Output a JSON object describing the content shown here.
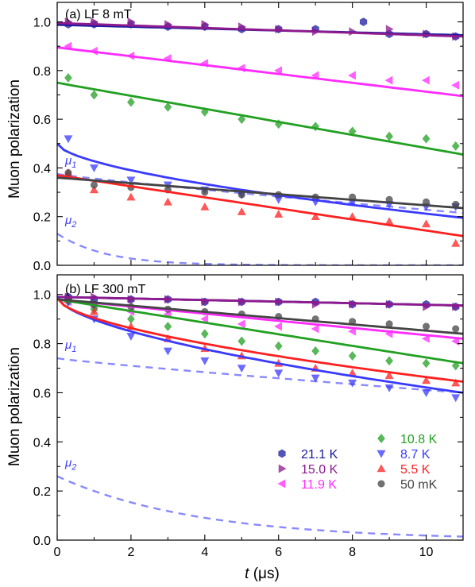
{
  "figure": {
    "ylabel": "Muon polarization",
    "xlabel_italic": "t",
    "xlabel_unit": " (μs)",
    "xticks": [
      "0",
      "2",
      "4",
      "6",
      "8",
      "10"
    ],
    "yticks": [
      "0.0",
      "0.2",
      "0.4",
      "0.6",
      "0.8",
      "1.0"
    ]
  },
  "legend": [
    {
      "label": "21.1 K",
      "color": "#1a1aa0",
      "marker": "hexagon"
    },
    {
      "label": "15.0 K",
      "color": "#8e1a8e",
      "marker": "triangle-right"
    },
    {
      "label": "11.9 K",
      "color": "#ff2bff",
      "marker": "triangle-left"
    },
    {
      "label": "10.8 K",
      "color": "#22a022",
      "marker": "diamond"
    },
    {
      "label": "8.7 K",
      "color": "#3a3aff",
      "marker": "triangle-down"
    },
    {
      "label": "5.5 K",
      "color": "#ff2020",
      "marker": "triangle-up"
    },
    {
      "label": "50 mK",
      "color": "#444444",
      "marker": "circle"
    }
  ],
  "chart_data": [
    {
      "type": "scatter",
      "panel": "top",
      "title": "(a) LF 8 mT",
      "xlim": [
        0,
        11
      ],
      "ylim": [
        0,
        1.08
      ],
      "series": [
        {
          "name": "21.1 K",
          "color": "#1a1aa0",
          "marker": "hexagon",
          "fit": [
            0.988,
            0.945
          ],
          "x": [
            0.3,
            1.0,
            2.0,
            3.0,
            4.0,
            5.0,
            6.0,
            7.0,
            8.3,
            9.0,
            10.0,
            10.8
          ],
          "y": [
            0.99,
            0.99,
            0.99,
            0.98,
            0.98,
            0.97,
            0.97,
            0.97,
            1.0,
            0.95,
            0.95,
            0.94
          ]
        },
        {
          "name": "15.0 K",
          "color": "#8e1a8e",
          "marker": "triangle-right",
          "fit": [
            0.995,
            0.94
          ],
          "x": [
            0.3,
            1.0,
            2.0,
            3.0,
            4.0,
            5.0,
            6.0,
            7.0,
            8.0,
            9.0,
            10.0,
            10.8
          ],
          "y": [
            1.0,
            1.0,
            1.0,
            0.99,
            0.99,
            0.98,
            0.97,
            0.96,
            0.96,
            0.97,
            0.95,
            0.94
          ]
        },
        {
          "name": "11.9 K",
          "color": "#ff2bff",
          "marker": "triangle-left",
          "fit": [
            0.895,
            0.695
          ],
          "x": [
            0.3,
            1.0,
            2.0,
            3.0,
            4.0,
            5.0,
            6.0,
            7.0,
            8.0,
            9.0,
            10.0,
            10.8
          ],
          "y": [
            0.9,
            0.88,
            0.86,
            0.85,
            0.83,
            0.81,
            0.8,
            0.78,
            0.78,
            0.76,
            0.76,
            0.74
          ]
        },
        {
          "name": "10.8 K",
          "color": "#22a022",
          "marker": "diamond",
          "fit": [
            0.75,
            0.455
          ],
          "x": [
            0.3,
            1.0,
            2.0,
            3.0,
            4.0,
            5.0,
            6.0,
            7.0,
            8.0,
            9.0,
            10.0,
            10.8
          ],
          "y": [
            0.77,
            0.7,
            0.67,
            0.65,
            0.63,
            0.6,
            0.58,
            0.57,
            0.55,
            0.53,
            0.52,
            0.49
          ]
        },
        {
          "name": "8.7 K",
          "color": "#3a3aff",
          "marker": "triangle-down",
          "fit": [
            0.5,
            0.195
          ],
          "fitShape": "steep",
          "x": [
            0.3,
            1.0,
            2.0,
            3.0,
            4.0,
            5.0,
            6.0,
            7.0,
            8.0,
            9.0,
            10.0,
            10.8
          ],
          "y": [
            0.52,
            0.4,
            0.35,
            0.33,
            0.31,
            0.29,
            0.27,
            0.26,
            0.26,
            0.25,
            0.24,
            0.24
          ]
        },
        {
          "name": "5.5 K",
          "color": "#ff2020",
          "marker": "triangle-up",
          "fit": [
            0.37,
            0.12
          ],
          "x": [
            0.3,
            1.0,
            2.0,
            3.0,
            4.0,
            5.0,
            6.0,
            7.0,
            8.0,
            9.0,
            10.0,
            10.8
          ],
          "y": [
            0.38,
            0.31,
            0.28,
            0.26,
            0.24,
            0.22,
            0.21,
            0.2,
            0.2,
            0.18,
            0.17,
            0.09
          ]
        },
        {
          "name": "50 mK",
          "color": "#444444",
          "marker": "circle",
          "fit": [
            0.36,
            0.235
          ],
          "x": [
            0.3,
            1.0,
            2.0,
            3.0,
            4.0,
            5.0,
            6.0,
            7.0,
            8.0,
            9.0,
            10.0,
            10.8
          ],
          "y": [
            0.38,
            0.33,
            0.32,
            0.31,
            0.3,
            0.29,
            0.29,
            0.28,
            0.28,
            0.27,
            0.26,
            0.25
          ]
        }
      ],
      "components": [
        {
          "name": "μ1",
          "color": "#3a3aff",
          "start": 0.375,
          "end": 0.215
        },
        {
          "name": "μ2",
          "color": "#3a3aff",
          "start": 0.13,
          "end": 0.0,
          "tau": 1.3
        }
      ]
    },
    {
      "type": "scatter",
      "panel": "bottom",
      "title": "(b) LF 300 mT",
      "xlim": [
        0,
        11
      ],
      "ylim": [
        0,
        1.08
      ],
      "series": [
        {
          "name": "21.1 K",
          "color": "#1a1aa0",
          "marker": "hexagon",
          "fit": [
            0.99,
            0.955
          ],
          "x": [
            0.3,
            1.0,
            2.0,
            3.0,
            4.0,
            5.0,
            6.0,
            7.0,
            8.0,
            9.0,
            10.0,
            10.8
          ],
          "y": [
            0.99,
            0.98,
            0.98,
            0.98,
            0.97,
            0.97,
            0.97,
            0.97,
            0.96,
            0.96,
            0.96,
            0.95
          ]
        },
        {
          "name": "15.0 K",
          "color": "#8e1a8e",
          "marker": "triangle-right",
          "fit": [
            0.99,
            0.955
          ],
          "x": [
            0.3,
            1.0,
            2.0,
            3.0,
            4.0,
            5.0,
            6.0,
            7.0,
            8.0,
            9.0,
            10.0,
            10.8
          ],
          "y": [
            0.99,
            0.99,
            0.98,
            0.98,
            0.97,
            0.97,
            0.97,
            0.96,
            0.96,
            0.96,
            0.95,
            0.95
          ]
        },
        {
          "name": "11.9 K",
          "color": "#ff2bff",
          "marker": "triangle-left",
          "fit": [
            0.98,
            0.82
          ],
          "x": [
            0.3,
            1.0,
            2.0,
            3.0,
            4.0,
            5.0,
            6.0,
            7.0,
            8.0,
            9.0,
            10.0,
            10.8
          ],
          "y": [
            0.97,
            0.95,
            0.93,
            0.92,
            0.9,
            0.88,
            0.87,
            0.86,
            0.85,
            0.84,
            0.82,
            0.81
          ]
        },
        {
          "name": "10.8 K",
          "color": "#22a022",
          "marker": "diamond",
          "fit": [
            0.98,
            0.72
          ],
          "x": [
            0.3,
            1.0,
            2.0,
            3.0,
            4.0,
            5.0,
            6.0,
            7.0,
            8.0,
            9.0,
            10.0,
            10.8
          ],
          "y": [
            0.97,
            0.94,
            0.9,
            0.87,
            0.84,
            0.81,
            0.79,
            0.77,
            0.75,
            0.73,
            0.72,
            0.71
          ]
        },
        {
          "name": "8.7 K",
          "color": "#3a3aff",
          "marker": "triangle-down",
          "fit": [
            0.99,
            0.6
          ],
          "fitShape": "steep",
          "x": [
            0.3,
            1.0,
            2.0,
            3.0,
            4.0,
            5.0,
            6.0,
            7.0,
            8.0,
            9.0,
            10.0,
            10.8
          ],
          "y": [
            0.97,
            0.9,
            0.83,
            0.77,
            0.73,
            0.7,
            0.68,
            0.66,
            0.64,
            0.62,
            0.6,
            0.58
          ]
        },
        {
          "name": "5.5 K",
          "color": "#ff2020",
          "marker": "triangle-up",
          "fit": [
            0.985,
            0.645
          ],
          "fitShape": "steep",
          "x": [
            0.3,
            1.0,
            2.0,
            3.0,
            4.0,
            5.0,
            6.0,
            7.0,
            8.0,
            9.0,
            10.0,
            10.8
          ],
          "y": [
            0.98,
            0.93,
            0.87,
            0.82,
            0.78,
            0.75,
            0.72,
            0.7,
            0.68,
            0.67,
            0.65,
            0.64
          ]
        },
        {
          "name": "50 mK",
          "color": "#444444",
          "marker": "circle",
          "fit": [
            0.98,
            0.84
          ],
          "x": [
            0.3,
            1.0,
            2.0,
            3.0,
            4.0,
            5.0,
            6.0,
            7.0,
            8.0,
            9.0,
            10.0,
            10.8
          ],
          "y": [
            0.98,
            0.96,
            0.95,
            0.94,
            0.93,
            0.92,
            0.91,
            0.9,
            0.89,
            0.88,
            0.87,
            0.86
          ]
        }
      ],
      "components": [
        {
          "name": "μ1",
          "color": "#3a3aff",
          "start": 0.74,
          "end": 0.6
        },
        {
          "name": "μ2",
          "color": "#3a3aff",
          "start": 0.26,
          "end": 0.0,
          "tau": 3.8
        }
      ]
    }
  ]
}
